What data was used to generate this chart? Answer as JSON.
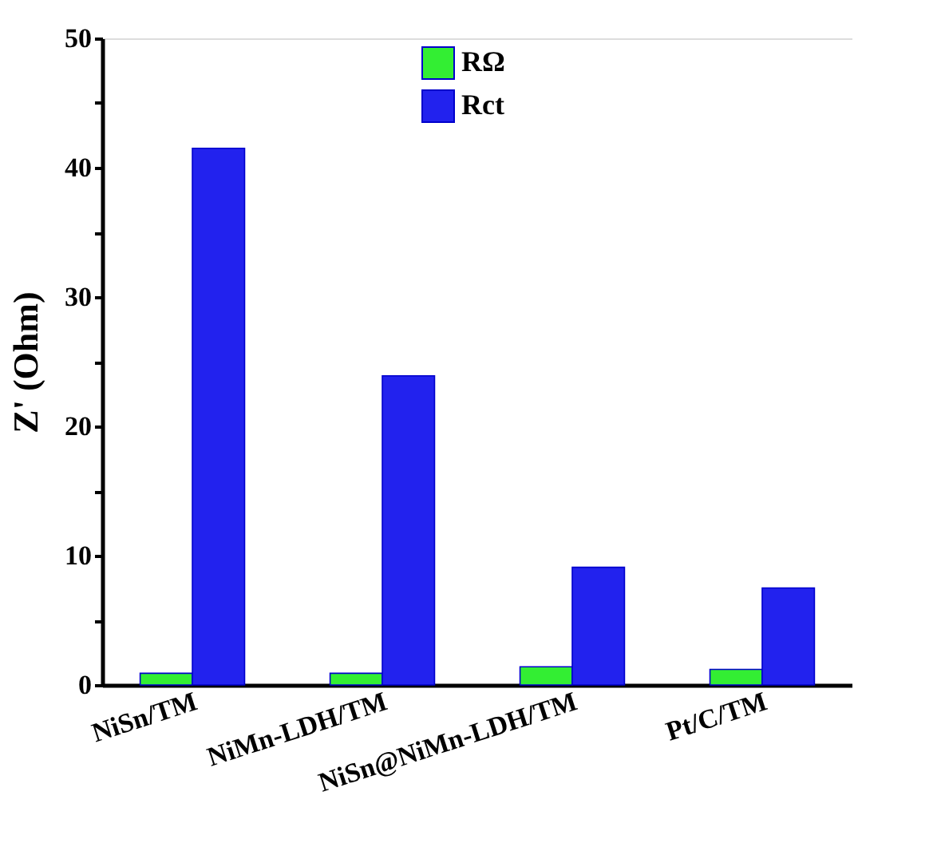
{
  "chart_data": {
    "type": "bar",
    "ylabel": "Z' (Ohm)",
    "categories": [
      "NiSn/TM",
      "NiMn-LDH/TM",
      "NiSn@NiMn-LDH/TM",
      "Pt/C/TM"
    ],
    "series": [
      {
        "name": "RΩ",
        "color": "#33ee33",
        "values": [
          0.9,
          0.9,
          1.4,
          1.2
        ]
      },
      {
        "name": "Rct",
        "color": "#2222ee",
        "values": [
          41.5,
          23.9,
          9.1,
          7.5
        ]
      }
    ],
    "ylim": [
      0,
      50
    ],
    "yticks": [
      0,
      {
        "value": 5,
        "label": null
      },
      10,
      {
        "value": 15,
        "label": null
      },
      20,
      {
        "value": 25,
        "label": null
      },
      30,
      {
        "value": 35,
        "label": null
      },
      40,
      {
        "value": 45,
        "label": null
      },
      50
    ],
    "grid": false,
    "legend": "top"
  }
}
